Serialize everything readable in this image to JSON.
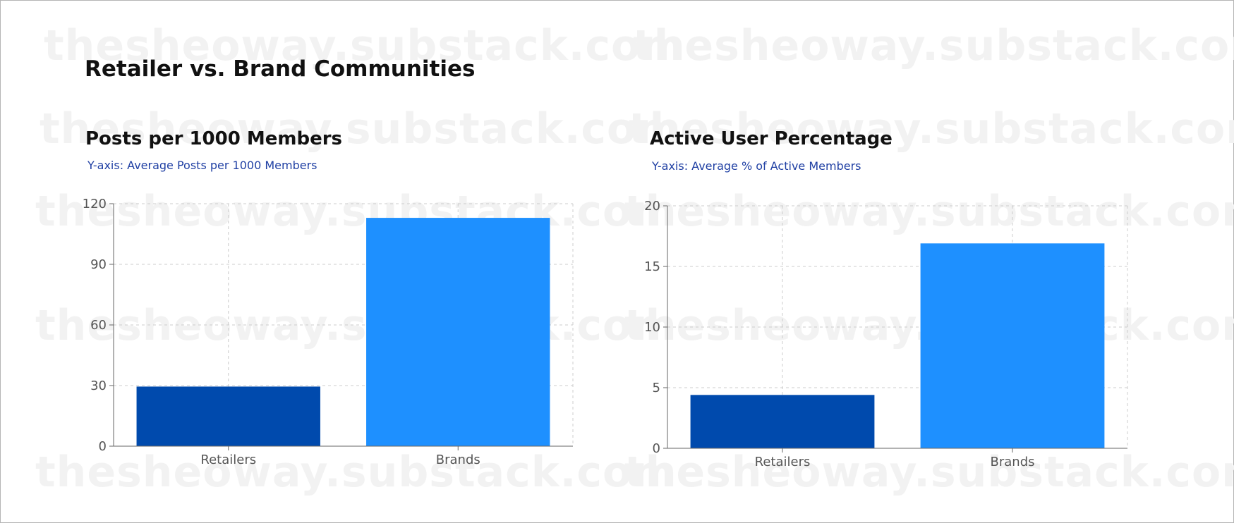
{
  "page": {
    "title": "Retailer vs. Brand Communities",
    "watermark": "thesheoway.substack.com"
  },
  "colors": {
    "retailers": "#004aad",
    "brands": "#1e90ff",
    "subtitle": "#1f3fa3",
    "grid": "#cccccc",
    "axis": "#666666"
  },
  "chart_data": [
    {
      "type": "bar",
      "title": "Posts per 1000 Members",
      "subtitle": "Y-axis: Average Posts per 1000 Members",
      "categories": [
        "Retailers",
        "Brands"
      ],
      "values": [
        29.5,
        113
      ],
      "ylim": [
        0,
        120
      ],
      "yticks": [
        "0",
        "30",
        "60",
        "90",
        "120"
      ],
      "grid": true,
      "legend": "none"
    },
    {
      "type": "bar",
      "title": "Active User Percentage",
      "subtitle": "Y-axis: Average % of Active Members",
      "categories": [
        "Retailers",
        "Brands"
      ],
      "values": [
        4.4,
        16.9
      ],
      "ylim": [
        0,
        20
      ],
      "yticks": [
        "0",
        "5",
        "10",
        "15",
        "20"
      ],
      "grid": true,
      "legend": "none"
    }
  ]
}
